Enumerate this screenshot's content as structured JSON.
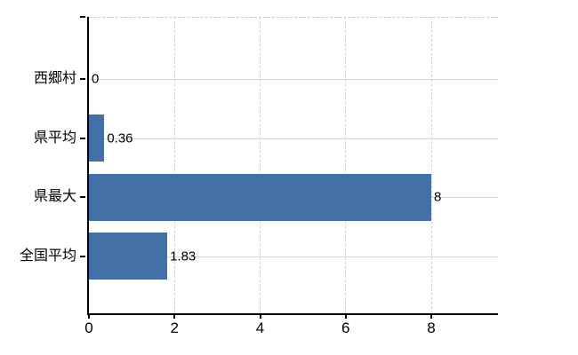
{
  "chart_data": {
    "type": "bar",
    "orientation": "horizontal",
    "title": "",
    "xlabel": "",
    "ylabel": "",
    "categories": [
      "西郷村",
      "県平均",
      "県最大",
      "全国平均"
    ],
    "values": [
      0,
      0.36,
      8,
      1.83
    ],
    "value_labels": [
      "0",
      "0.36",
      "8",
      "1.83"
    ],
    "xlim": [
      0,
      9.56
    ],
    "xticks": [
      0,
      2,
      4,
      6,
      8
    ],
    "xtick_labels": [
      "0",
      "2",
      "4",
      "6",
      "8"
    ],
    "vertical_gridline_values": [
      2,
      4,
      6,
      8
    ],
    "grid": {
      "vertical_style": "dashed",
      "horizontal_style": "solid",
      "horizontal_at": "category-centers",
      "top_border_style": "dashed"
    },
    "legend_position": "none",
    "bar_color": "#4470a8",
    "grid_color": "#d5d5d5",
    "axis_color": "#000000",
    "text_color": "#000000",
    "background_color": "#ffffff"
  }
}
